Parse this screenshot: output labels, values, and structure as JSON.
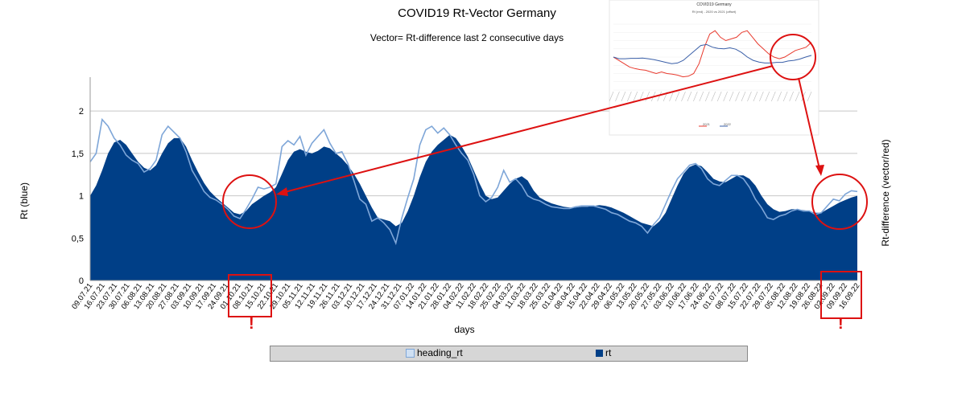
{
  "chart_data": {
    "type": "area",
    "title": "COVID19  Rt-Vector  Germany",
    "subtitle": "Vector= Rt-difference last 2 consecutive days",
    "xlabel": "days",
    "ylabel": "Rt  (blue)",
    "ylabel_right": "Rt-difference (vector/red)",
    "ylim": [
      0,
      2.4
    ],
    "yticks": [
      0,
      0.5,
      1,
      1.5,
      2
    ],
    "ytick_labels": [
      "0",
      "0,5",
      "1",
      "1,5",
      "2"
    ],
    "grid": true,
    "legend_position": "bottom",
    "x_tick_labels": [
      "09.07.21",
      "16.07.21",
      "23.07.21",
      "30.07.21",
      "06.08.21",
      "13.08.21",
      "20.08.21",
      "27.08.21",
      "03.09.21",
      "10.09.21",
      "17.09.21",
      "24.09.21",
      "01.10.21",
      "08.10.21",
      "15.10.21",
      "22.10.21",
      "29.10.21",
      "05.11.21",
      "12.11.21",
      "19.11.21",
      "26.11.21",
      "03.12.21",
      "10.12.21",
      "17.12.21",
      "24.12.21",
      "31.12.21",
      "07.01.22",
      "14.01.22",
      "21.01.22",
      "28.01.22",
      "04.02.22",
      "11.02.22",
      "18.02.22",
      "25.02.22",
      "04.03.22",
      "11.03.22",
      "18.03.22",
      "25.03.22",
      "01.04.22",
      "08.04.22",
      "15.04.22",
      "22.04.22",
      "29.04.22",
      "06.05.22",
      "13.05.22",
      "20.05.22",
      "27.05.22",
      "03.06.22",
      "10.06.22",
      "17.06.22",
      "24.06.22",
      "01.07.22",
      "08.07.22",
      "15.07.22",
      "22.07.22",
      "29.07.22",
      "05.08.22",
      "12.08.22",
      "19.08.22",
      "26.08.22",
      "02.09.22",
      "09.09.22",
      "16.09.22"
    ],
    "series": [
      {
        "name": "rt",
        "color": "#003f87",
        "values": [
          1.0,
          1.12,
          1.3,
          1.5,
          1.63,
          1.66,
          1.6,
          1.5,
          1.4,
          1.33,
          1.3,
          1.36,
          1.5,
          1.62,
          1.68,
          1.68,
          1.58,
          1.42,
          1.28,
          1.15,
          1.05,
          0.98,
          0.92,
          0.86,
          0.8,
          0.78,
          0.82,
          0.9,
          0.95,
          1.0,
          1.04,
          1.1,
          1.26,
          1.42,
          1.52,
          1.55,
          1.52,
          1.5,
          1.53,
          1.58,
          1.56,
          1.5,
          1.44,
          1.36,
          1.26,
          1.14,
          1.0,
          0.86,
          0.74,
          0.72,
          0.7,
          0.64,
          0.68,
          0.82,
          1.0,
          1.22,
          1.4,
          1.52,
          1.6,
          1.66,
          1.72,
          1.68,
          1.58,
          1.46,
          1.3,
          1.14,
          1.0,
          0.96,
          0.98,
          1.06,
          1.14,
          1.2,
          1.23,
          1.18,
          1.06,
          0.98,
          0.94,
          0.91,
          0.89,
          0.87,
          0.86,
          0.86,
          0.87,
          0.87,
          0.88,
          0.89,
          0.88,
          0.86,
          0.83,
          0.8,
          0.76,
          0.72,
          0.68,
          0.66,
          0.64,
          0.7,
          0.8,
          0.96,
          1.12,
          1.26,
          1.34,
          1.37,
          1.35,
          1.28,
          1.2,
          1.17,
          1.16,
          1.2,
          1.24,
          1.24,
          1.2,
          1.12,
          1.0,
          0.9,
          0.84,
          0.81,
          0.82,
          0.84,
          0.84,
          0.83,
          0.82,
          0.8,
          0.8,
          0.84,
          0.88,
          0.92,
          0.95,
          0.98,
          1.0
        ]
      },
      {
        "name": "heading_rt",
        "color": "#7ea6d8",
        "values": [
          1.4,
          1.5,
          1.9,
          1.82,
          1.68,
          1.6,
          1.48,
          1.42,
          1.38,
          1.28,
          1.32,
          1.42,
          1.72,
          1.82,
          1.75,
          1.68,
          1.52,
          1.3,
          1.18,
          1.05,
          0.98,
          0.95,
          0.9,
          0.84,
          0.76,
          0.73,
          0.84,
          0.96,
          1.1,
          1.08,
          1.1,
          1.14,
          1.58,
          1.65,
          1.6,
          1.7,
          1.48,
          1.62,
          1.7,
          1.78,
          1.62,
          1.5,
          1.52,
          1.38,
          1.18,
          0.96,
          0.9,
          0.7,
          0.74,
          0.68,
          0.6,
          0.44,
          0.74,
          0.98,
          1.2,
          1.6,
          1.78,
          1.82,
          1.74,
          1.8,
          1.72,
          1.6,
          1.5,
          1.42,
          1.25,
          1.0,
          0.93,
          0.98,
          1.1,
          1.3,
          1.16,
          1.2,
          1.12,
          1.0,
          0.96,
          0.94,
          0.9,
          0.87,
          0.86,
          0.85,
          0.85,
          0.87,
          0.88,
          0.88,
          0.88,
          0.86,
          0.84,
          0.8,
          0.78,
          0.74,
          0.7,
          0.68,
          0.64,
          0.56,
          0.66,
          0.74,
          0.9,
          1.06,
          1.2,
          1.28,
          1.36,
          1.38,
          1.32,
          1.2,
          1.14,
          1.12,
          1.18,
          1.24,
          1.24,
          1.2,
          1.1,
          0.96,
          0.86,
          0.74,
          0.72,
          0.76,
          0.78,
          0.82,
          0.84,
          0.82,
          0.82,
          0.78,
          0.8,
          0.88,
          0.96,
          0.94,
          1.02,
          1.06,
          1.05
        ]
      }
    ]
  },
  "legend": {
    "items": [
      {
        "label": "heading_rt",
        "color": "#7ea6d8"
      },
      {
        "label": "rt",
        "color": "#003f87"
      }
    ]
  },
  "inset": {
    "title": "COVID19 Germany",
    "subtitle": "Rt (red) - 2020 vs 2021 (offset)",
    "legend": [
      "2021",
      "2022"
    ],
    "colors": {
      "red": "#e83a2e",
      "blue": "#3a5fa8"
    },
    "red_values": [
      1.0,
      0.9,
      0.8,
      0.7,
      0.65,
      0.62,
      0.6,
      0.55,
      0.5,
      0.55,
      0.5,
      0.48,
      0.45,
      0.4,
      0.42,
      0.5,
      0.8,
      1.3,
      1.7,
      1.8,
      1.6,
      1.5,
      1.55,
      1.6,
      1.75,
      1.8,
      1.6,
      1.4,
      1.25,
      1.1,
      1.0,
      0.95,
      1.0,
      1.1,
      1.2,
      1.25,
      1.3,
      1.45
    ],
    "blue_values": [
      1.0,
      0.95,
      0.95,
      0.96,
      0.96,
      0.97,
      0.95,
      0.92,
      0.88,
      0.84,
      0.8,
      0.82,
      0.9,
      1.05,
      1.2,
      1.35,
      1.38,
      1.3,
      1.26,
      1.25,
      1.28,
      1.24,
      1.14,
      1.0,
      0.9,
      0.85,
      0.82,
      0.82,
      0.84,
      0.84,
      0.88,
      0.9,
      0.94,
      1.0,
      1.05
    ]
  },
  "annotations": {
    "exclamation": "!"
  }
}
